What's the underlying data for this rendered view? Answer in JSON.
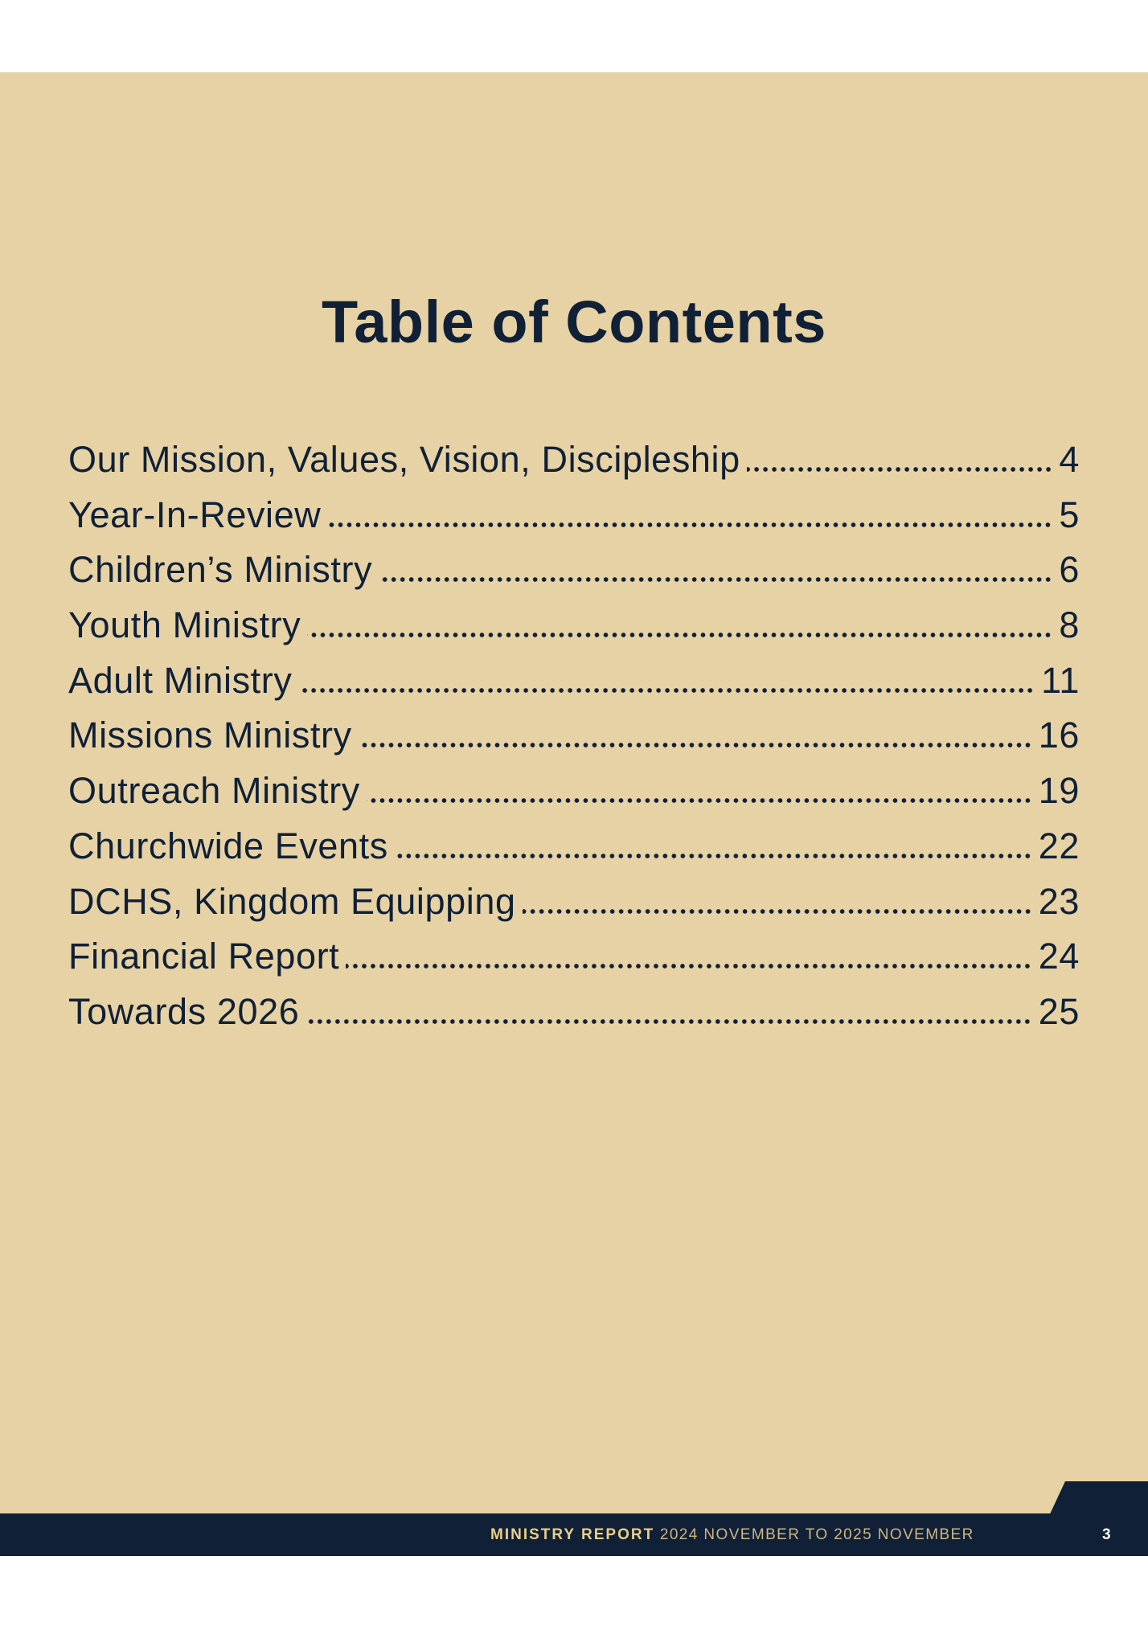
{
  "title": "Table of Contents",
  "entries": [
    {
      "label": "Our Mission, Values, Vision, Discipleship",
      "page": "4"
    },
    {
      "label": "Year-In-Review",
      "page": "5"
    },
    {
      "label": "Children’s Ministry",
      "page": "6"
    },
    {
      "label": "Youth Ministry",
      "page": "8"
    },
    {
      "label": "Adult Ministry",
      "page": "11"
    },
    {
      "label": "Missions Ministry",
      "page": "16"
    },
    {
      "label": "Outreach Ministry",
      "page": "19"
    },
    {
      "label": "Churchwide Events",
      "page": "22"
    },
    {
      "label": "DCHS, Kingdom Equipping",
      "page": "23"
    },
    {
      "label": "Financial Report",
      "page": "24"
    },
    {
      "label": "Towards 2026",
      "page": "25"
    }
  ],
  "footer": {
    "report_title": "MINISTRY REPORT",
    "period": "2024 NOVEMBER TO 2025 NOVEMBER",
    "page_number": "3"
  },
  "colors": {
    "background": "#e6d2a4",
    "navy": "#102037",
    "gold": "#eccf86"
  }
}
